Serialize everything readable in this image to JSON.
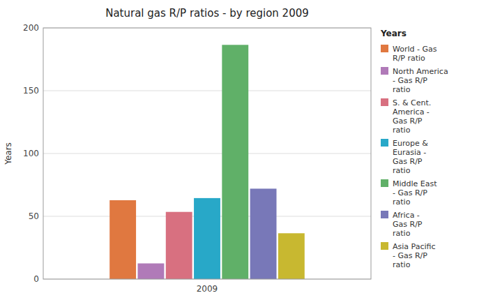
{
  "chart_data": {
    "type": "bar",
    "title": "Natural gas R/P ratios - by region 2009",
    "ylabel": "Years",
    "categories": [
      "2009"
    ],
    "legend_title": "Years",
    "series": [
      {
        "name": "World - Gas\nR/P ratio",
        "color": "#E07840",
        "values": [
          62.8
        ]
      },
      {
        "name": "North America\n- Gas R/P\nratio",
        "color": "#B07AB8",
        "values": [
          12.5
        ]
      },
      {
        "name": "S. & Cent.\nAmerica -\nGas R/P\nratio",
        "color": "#D87080",
        "values": [
          53.5
        ]
      },
      {
        "name": "Europe &\nEurasia -\nGas R/P\nratio",
        "color": "#28A8C8",
        "values": [
          64.5
        ]
      },
      {
        "name": "Middle East\n- Gas R/P\nratio",
        "color": "#60B068",
        "values": [
          186.5
        ]
      },
      {
        "name": "Africa -\nGas R/P\nratio",
        "color": "#7878B8",
        "values": [
          72.0
        ]
      },
      {
        "name": "Asia Pacific\n- Gas R/P\nratio",
        "color": "#C8B830",
        "values": [
          36.5
        ]
      }
    ],
    "ylim": [
      0,
      200
    ],
    "yticks": [
      0,
      50,
      100,
      150,
      200
    ],
    "grid": true,
    "legend": "right"
  }
}
